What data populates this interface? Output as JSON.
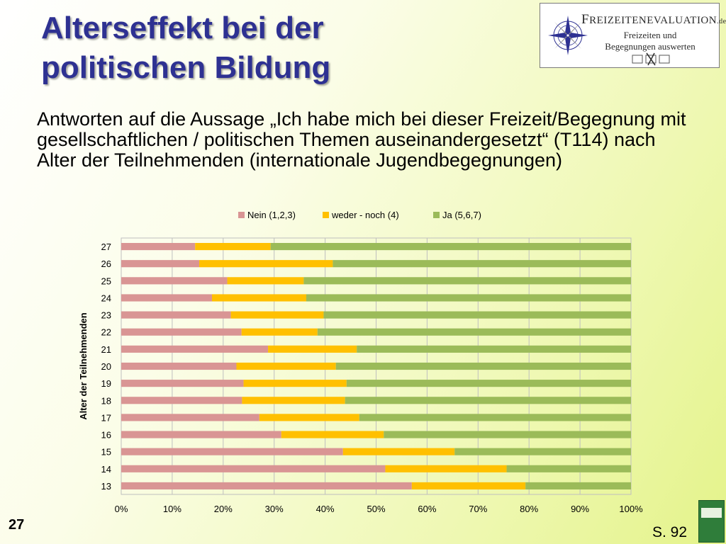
{
  "title_line1": "Alterseffekt bei der",
  "title_line2": "politischen Bildung",
  "subtitle": "Antworten auf die Aussage „Ich habe mich bei dieser Freizeit/Begegnung mit gesellschaftlichen / politischen Themen auseinandergesetzt“ (T114) nach Alter der Teilnehmenden (internationale Jugendbegegnungen)",
  "logo": {
    "brand_first": "F",
    "brand_rest": "REIZEITENEVALUATION",
    "brand_suffix": ".de",
    "tagline1": "Freizeiten und",
    "tagline2": "Begegnungen auswerten",
    "icon": "compass-rose-icon"
  },
  "footer": {
    "page_number": "27",
    "page_reference": "S. 92",
    "book_icon": "book-cover-icon"
  },
  "chart_data": {
    "type": "bar",
    "orientation": "horizontal",
    "stacked": "percent",
    "categories": [
      "27",
      "26",
      "25",
      "24",
      "23",
      "22",
      "21",
      "20",
      "19",
      "18",
      "17",
      "16",
      "15",
      "14",
      "13"
    ],
    "series": [
      {
        "name": "Nein (1,2,3)",
        "color": "#d99594",
        "values": [
          14.5,
          15.3,
          20.8,
          17.8,
          21.5,
          23.6,
          28.8,
          22.6,
          24.0,
          23.7,
          27.1,
          31.4,
          43.5,
          51.8,
          57.0
        ]
      },
      {
        "name": "weder - noch (4)",
        "color": "#ffc000",
        "values": [
          14.8,
          26.2,
          15.0,
          18.5,
          18.2,
          14.9,
          17.4,
          19.5,
          20.2,
          20.2,
          19.6,
          20.1,
          21.9,
          23.8,
          22.3
        ]
      },
      {
        "name": "Ja (5,6,7)",
        "color": "#9bbb59",
        "values": [
          70.7,
          58.5,
          64.2,
          63.7,
          60.3,
          61.5,
          53.8,
          57.9,
          55.8,
          56.1,
          53.3,
          48.5,
          34.6,
          24.4,
          20.7
        ]
      }
    ],
    "xlim": [
      0,
      100
    ],
    "xticks": [
      "0%",
      "10%",
      "20%",
      "30%",
      "40%",
      "50%",
      "60%",
      "70%",
      "80%",
      "90%",
      "100%"
    ],
    "ylabel": "Alter der Teilnehmenden",
    "xlabel": "",
    "grid": true,
    "legend_position": "top"
  }
}
